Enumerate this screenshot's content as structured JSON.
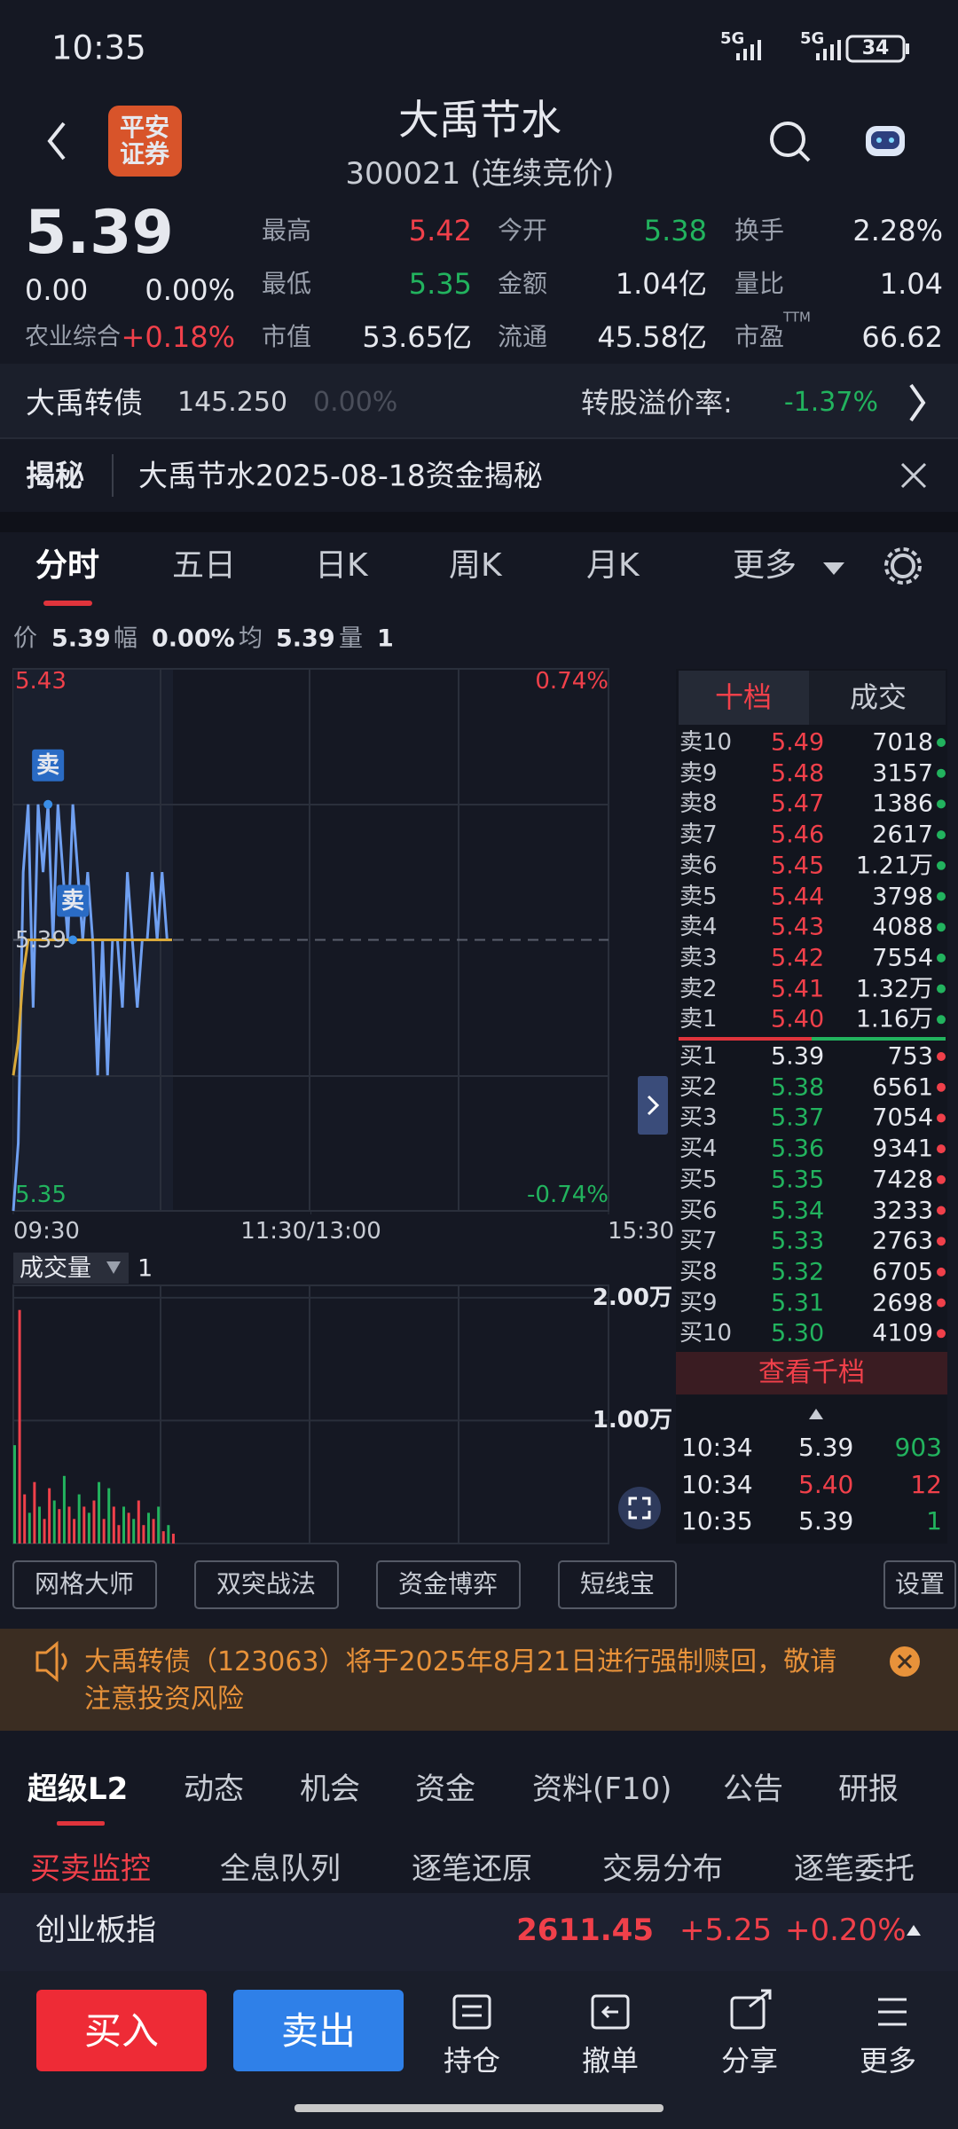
{
  "status": {
    "time": "10:35",
    "network": [
      "5G",
      "5G"
    ],
    "battery": "34"
  },
  "header": {
    "broker": [
      "平安",
      "证券"
    ],
    "title": "大禹节水",
    "subtitle": "300021 (连续竞价)"
  },
  "quote": {
    "price": "5.39",
    "change": "0.00",
    "change_pct": "0.00%",
    "sector": "农业综合",
    "sector_pct": "+0.18%",
    "ttm": "TTM",
    "stats": [
      {
        "label": "最高",
        "value": "5.42",
        "color": "#f0404a"
      },
      {
        "label": "今开",
        "value": "5.38",
        "color": "#22b35e"
      },
      {
        "label": "换手",
        "value": "2.28%",
        "color": "#e6e8ee"
      },
      {
        "label": "最低",
        "value": "5.35",
        "color": "#22b35e"
      },
      {
        "label": "金额",
        "value": "1.04亿",
        "color": "#e6e8ee"
      },
      {
        "label": "量比",
        "value": "1.04",
        "color": "#e6e8ee"
      },
      {
        "label": "市值",
        "value": "53.65亿",
        "color": "#e6e8ee"
      },
      {
        "label": "流通",
        "value": "45.58亿",
        "color": "#e6e8ee"
      },
      {
        "label": "市盈",
        "value": "66.62",
        "color": "#e6e8ee"
      }
    ]
  },
  "bond": {
    "name": "大禹转债",
    "price": "145.250",
    "pct": "0.00%",
    "premium_label": "转股溢价率:",
    "premium": "-1.37%"
  },
  "reveal": {
    "tag": "揭秘",
    "text": "大禹节水2025-08-18资金揭秘"
  },
  "tabs": [
    "分时",
    "五日",
    "日K",
    "周K",
    "月K",
    "更多"
  ],
  "info": [
    "价",
    "5.39",
    "幅",
    "0.00%",
    "均",
    "5.39",
    "量",
    "1"
  ],
  "chart_data": [
    {
      "type": "line",
      "x": [
        0,
        2,
        4,
        6,
        8,
        10,
        12,
        14,
        16,
        18,
        20,
        22,
        24,
        26,
        28,
        30,
        32,
        34,
        36,
        38,
        40,
        42,
        44,
        46,
        48,
        50,
        52,
        54,
        56,
        58,
        60,
        62,
        64
      ],
      "series": [
        {
          "color": "#6f9ff0",
          "values": [
            5.35,
            5.36,
            5.4,
            5.41,
            5.38,
            5.41,
            5.4,
            5.41,
            5.39,
            5.41,
            5.4,
            5.39,
            5.41,
            5.4,
            5.39,
            5.4,
            5.39,
            5.37,
            5.39,
            5.37,
            5.39,
            5.39,
            5.38,
            5.4,
            5.39,
            5.38,
            5.39,
            5.39,
            5.4,
            5.39,
            5.4,
            5.39,
            5.39
          ]
        },
        {
          "color": "#d9a93a",
          "values": [
            5.37,
            5.375,
            5.385,
            5.39,
            5.39,
            5.39,
            5.39,
            5.39,
            5.39,
            5.39,
            5.39,
            5.39,
            5.39,
            5.39,
            5.39,
            5.39,
            5.39,
            5.39,
            5.39,
            5.39,
            5.39,
            5.39,
            5.39,
            5.39,
            5.39,
            5.39,
            5.39,
            5.39,
            5.39,
            5.39,
            5.39,
            5.39,
            5.39
          ]
        }
      ],
      "xlim": [
        0,
        240
      ],
      "xticks": [
        {
          "value": 0,
          "label": "09:30"
        },
        {
          "value": 120,
          "label": "11:30/13:00"
        },
        {
          "value": 240,
          "label": "15:30"
        }
      ],
      "ylim": [
        5.35,
        5.43
      ],
      "yticks": [
        5.43,
        5.39,
        5.35
      ],
      "y2lim": [
        -0.74,
        0.74
      ],
      "y2ticks": [
        {
          "value": 0.74,
          "label": "0.74%"
        },
        {
          "value": -0.74,
          "label": "-0.74%"
        }
      ],
      "annotations": [
        {
          "label": "卖",
          "x": 14,
          "y": 5.41
        },
        {
          "label": "卖",
          "x": 24,
          "y": 5.39
        }
      ]
    },
    {
      "type": "bar",
      "title": "成交量",
      "subtitle": "1",
      "x": [
        0,
        2,
        4,
        6,
        8,
        10,
        12,
        14,
        16,
        18,
        20,
        22,
        24,
        26,
        28,
        30,
        32,
        34,
        36,
        38,
        40,
        42,
        44,
        46,
        48,
        50,
        52,
        54,
        56,
        58,
        60,
        62,
        64
      ],
      "values": [
        8000,
        19000,
        4000,
        2500,
        5000,
        3000,
        2000,
        4500,
        3500,
        2800,
        5500,
        3000,
        2000,
        4000,
        3000,
        2500,
        3500,
        5000,
        2000,
        4500,
        3000,
        1500,
        3000,
        2500,
        2000,
        3500,
        1500,
        2500,
        2000,
        3000,
        1000,
        1500,
        800
      ],
      "colors": [
        "#22b35e",
        "#f0404a",
        "#f0404a",
        "#22b35e",
        "#f0404a",
        "#22b35e",
        "#f0404a",
        "#f0404a",
        "#22b35e",
        "#f0404a",
        "#22b35e",
        "#f0404a",
        "#f0404a",
        "#22b35e",
        "#f0404a",
        "#22b35e",
        "#f0404a",
        "#22b35e",
        "#f0404a",
        "#22b35e",
        "#f0404a",
        "#f0404a",
        "#22b35e",
        "#f0404a",
        "#22b35e",
        "#f0404a",
        "#f0404a",
        "#22b35e",
        "#f0404a",
        "#22b35e",
        "#f0404a",
        "#22b35e",
        "#f0404a"
      ],
      "xlim": [
        0,
        240
      ],
      "ylim": [
        0,
        21000
      ],
      "yticks": [
        {
          "value": 20000,
          "label": "2.00万"
        },
        {
          "value": 10000,
          "label": "1.00万"
        }
      ]
    }
  ],
  "orderbook": {
    "tabs": [
      "十档",
      "成交"
    ],
    "asks": [
      [
        "卖10",
        "5.49",
        "7018"
      ],
      [
        "卖9",
        "5.48",
        "3157"
      ],
      [
        "卖8",
        "5.47",
        "1386"
      ],
      [
        "卖7",
        "5.46",
        "2617"
      ],
      [
        "卖6",
        "5.45",
        "1.21万"
      ],
      [
        "卖5",
        "5.44",
        "3798"
      ],
      [
        "卖4",
        "5.43",
        "4088"
      ],
      [
        "卖3",
        "5.42",
        "7554"
      ],
      [
        "卖2",
        "5.41",
        "1.32万"
      ],
      [
        "卖1",
        "5.40",
        "1.16万"
      ]
    ],
    "bids": [
      [
        "买1",
        "5.39",
        "753"
      ],
      [
        "买2",
        "5.38",
        "6561"
      ],
      [
        "买3",
        "5.37",
        "7054"
      ],
      [
        "买4",
        "5.36",
        "9341"
      ],
      [
        "买5",
        "5.35",
        "7428"
      ],
      [
        "买6",
        "5.34",
        "3233"
      ],
      [
        "买7",
        "5.33",
        "2763"
      ],
      [
        "买8",
        "5.32",
        "6705"
      ],
      [
        "买9",
        "5.31",
        "2698"
      ],
      [
        "买10",
        "5.30",
        "4109"
      ]
    ],
    "more": "查看千档",
    "trades": [
      {
        "time": "10:34",
        "price": "5.39",
        "volume": "903",
        "color": "#22b35e"
      },
      {
        "time": "10:34",
        "price": "5.40",
        "volume": "12",
        "color": "#f0404a"
      },
      {
        "time": "10:35",
        "price": "5.39",
        "volume": "1",
        "color": "#22b35e"
      }
    ]
  },
  "tools": [
    "网格大师",
    "双突战法",
    "资金博弈",
    "短线宝",
    "设置"
  ],
  "notice": "大禹转债（123063）将于2025年8月21日进行强制赎回，敬请注意投资风险",
  "bottom_tabs": [
    "超级L2",
    "动态",
    "机会",
    "资金",
    "资料(F10)",
    "公告",
    "研报"
  ],
  "sub_tabs": [
    "买卖监控",
    "全息队列",
    "逐笔还原",
    "交易分布",
    "逐笔委托"
  ],
  "index": {
    "name": "创业板指",
    "value": "2611.45",
    "change": "+5.25",
    "pct": "+0.20%"
  },
  "actions": [
    "买入",
    "卖出",
    "持仓",
    "撤单",
    "分享",
    "更多"
  ]
}
